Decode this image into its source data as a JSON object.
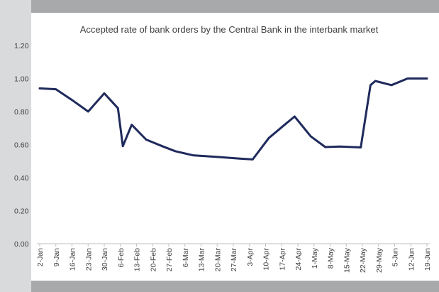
{
  "chart_data": {
    "type": "line",
    "title": "Accepted rate of bank orders by the Central Bank in the interbank market",
    "xlabel": "",
    "ylabel": "",
    "ylim": [
      0,
      1.2
    ],
    "yticks": [
      "0.00",
      "0.20",
      "0.40",
      "0.60",
      "0.80",
      "1.00",
      "1.20"
    ],
    "ytick_values": [
      0,
      0.2,
      0.4,
      0.6,
      0.8,
      1.0,
      1.2
    ],
    "categories": [
      "2-Jan",
      "9-Jan",
      "16-Jan",
      "23-Jan",
      "30-Jan",
      "6-Feb",
      "13-Feb",
      "20-Feb",
      "27-Feb",
      "6-Mar",
      "13-Mar",
      "20-Mar",
      "27-Mar",
      "3-Apr",
      "10-Apr",
      "17-Apr",
      "24-Apr",
      "1-May",
      "8-May",
      "15-May",
      "22-May",
      "29-May",
      "5-Jun",
      "12-Jun",
      "19-Jun"
    ],
    "grid": false,
    "legend": "none",
    "line_color": "#1f2a5c",
    "series": [
      {
        "points": [
          [
            0,
            0.94
          ],
          [
            1,
            0.935
          ],
          [
            2,
            0.87
          ],
          [
            3,
            0.8
          ],
          [
            4,
            0.91
          ],
          [
            4.85,
            0.82
          ],
          [
            5.15,
            0.59
          ],
          [
            5.7,
            0.72
          ],
          [
            6.6,
            0.63
          ],
          [
            7.6,
            0.59
          ],
          [
            8.4,
            0.56
          ],
          [
            9.5,
            0.535
          ],
          [
            11.0,
            0.525
          ],
          [
            12.4,
            0.515
          ],
          [
            13.2,
            0.51
          ],
          [
            14.2,
            0.64
          ],
          [
            15.3,
            0.73
          ],
          [
            15.8,
            0.77
          ],
          [
            16.8,
            0.65
          ],
          [
            17.7,
            0.585
          ],
          [
            18.6,
            0.588
          ],
          [
            19.9,
            0.583
          ],
          [
            20.5,
            0.96
          ],
          [
            20.8,
            0.985
          ],
          [
            21.8,
            0.96
          ],
          [
            22.8,
            1.0
          ],
          [
            24,
            1.0
          ]
        ]
      }
    ]
  }
}
